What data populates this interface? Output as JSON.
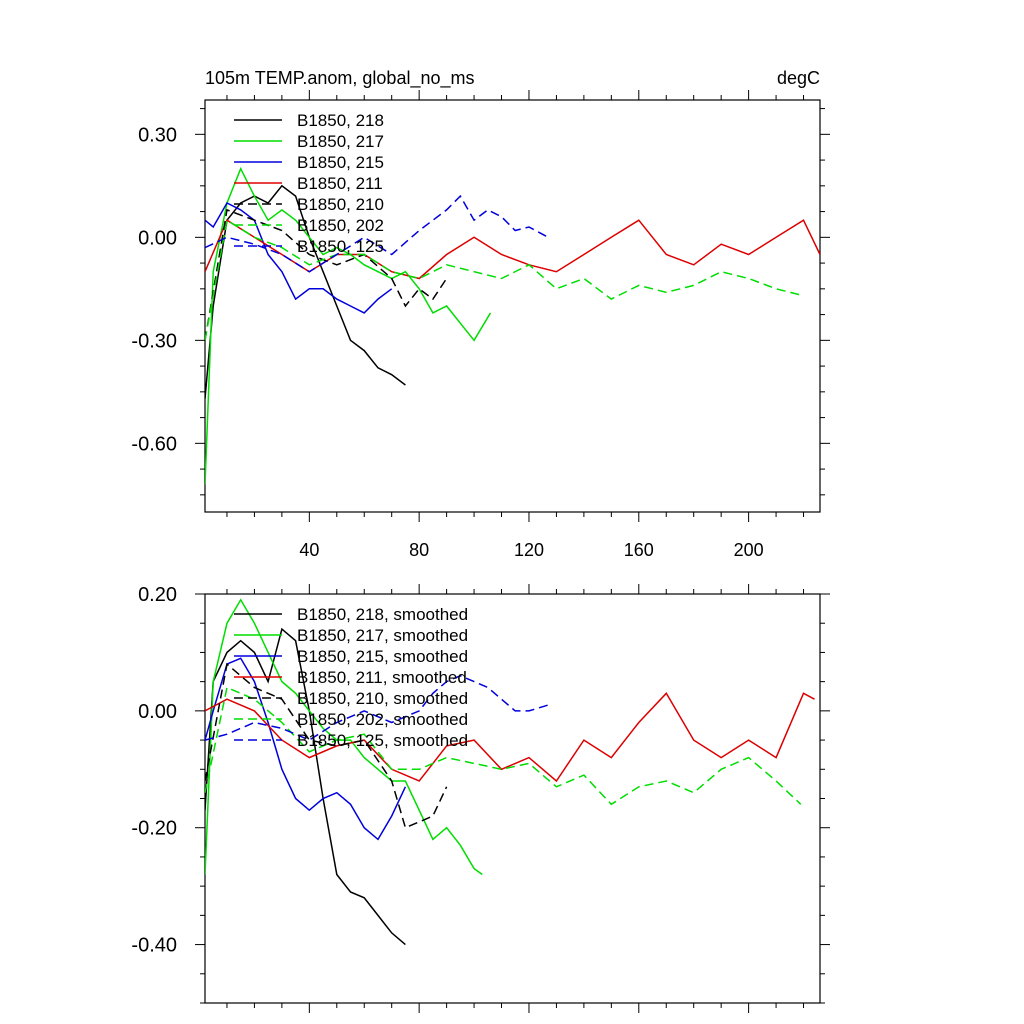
{
  "chart_data": [
    {
      "type": "line",
      "title": "105m TEMP.anom, global_no_ms",
      "units": "degC",
      "xlim": [
        2,
        226
      ],
      "ylim": [
        -0.8,
        0.4
      ],
      "xticks": [
        40,
        80,
        120,
        160,
        200
      ],
      "xtick_labels": [
        "40",
        "80",
        "120",
        "160",
        "200"
      ],
      "yticks": [
        0.3,
        0.0,
        -0.3,
        -0.6
      ],
      "ytick_labels": [
        "0.30",
        "0.00",
        "-0.30",
        "-0.60"
      ],
      "grid": false,
      "legend_position": "top-left",
      "series": [
        {
          "name": "B1850, 218",
          "color": "#000000",
          "dash": "solid",
          "x": [
            2,
            5,
            10,
            15,
            20,
            25,
            30,
            35,
            40,
            45,
            50,
            55,
            60,
            65,
            70,
            75
          ],
          "y": [
            -0.47,
            -0.2,
            0.05,
            0.1,
            0.12,
            0.1,
            0.15,
            0.12,
            0.0,
            -0.1,
            -0.2,
            -0.3,
            -0.33,
            -0.38,
            -0.4,
            -0.43
          ]
        },
        {
          "name": "B1850, 217",
          "color": "#00dd00",
          "dash": "solid",
          "x": [
            2,
            5,
            10,
            15,
            20,
            25,
            30,
            35,
            40,
            45,
            50,
            55,
            60,
            65,
            70,
            75,
            80,
            85,
            90,
            95,
            100,
            106
          ],
          "y": [
            -0.72,
            -0.1,
            0.1,
            0.2,
            0.12,
            0.05,
            0.08,
            0.05,
            0.0,
            -0.05,
            -0.03,
            -0.05,
            -0.08,
            -0.1,
            -0.12,
            -0.1,
            -0.15,
            -0.22,
            -0.2,
            -0.25,
            -0.3,
            -0.22
          ]
        },
        {
          "name": "B1850, 215",
          "color": "#0000dd",
          "dash": "solid",
          "x": [
            2,
            5,
            10,
            15,
            20,
            25,
            30,
            35,
            40,
            45,
            50,
            55,
            60,
            65,
            70
          ],
          "y": [
            0.05,
            0.03,
            0.1,
            0.08,
            0.05,
            -0.05,
            -0.1,
            -0.18,
            -0.15,
            -0.15,
            -0.18,
            -0.2,
            -0.22,
            -0.18,
            -0.15
          ]
        },
        {
          "name": "B1850, 211",
          "color": "#dd0000",
          "dash": "solid",
          "x": [
            2,
            10,
            20,
            30,
            40,
            50,
            60,
            70,
            80,
            90,
            100,
            110,
            120,
            130,
            140,
            150,
            160,
            170,
            180,
            190,
            200,
            210,
            220,
            226
          ],
          "y": [
            -0.1,
            0.05,
            0.0,
            -0.05,
            -0.1,
            -0.05,
            -0.05,
            -0.1,
            -0.12,
            -0.05,
            0.0,
            -0.05,
            -0.08,
            -0.1,
            -0.05,
            0.0,
            0.05,
            -0.05,
            -0.08,
            -0.02,
            -0.05,
            0.0,
            0.05,
            -0.05
          ]
        },
        {
          "name": "B1850, 210",
          "color": "#000000",
          "dash": "dashed",
          "x": [
            2,
            10,
            20,
            30,
            40,
            50,
            60,
            70,
            75,
            80,
            85,
            90
          ],
          "y": [
            -0.3,
            0.08,
            0.05,
            0.02,
            -0.05,
            -0.08,
            -0.05,
            -0.12,
            -0.2,
            -0.15,
            -0.18,
            -0.12
          ]
        },
        {
          "name": "B1850, 202",
          "color": "#00dd00",
          "dash": "dashed",
          "x": [
            2,
            10,
            20,
            30,
            40,
            50,
            60,
            70,
            80,
            90,
            100,
            110,
            120,
            130,
            140,
            150,
            160,
            170,
            180,
            190,
            200,
            210,
            220
          ],
          "y": [
            -0.3,
            0.05,
            0.0,
            -0.03,
            -0.08,
            -0.05,
            -0.05,
            -0.1,
            -0.12,
            -0.08,
            -0.1,
            -0.12,
            -0.08,
            -0.15,
            -0.12,
            -0.18,
            -0.14,
            -0.16,
            -0.14,
            -0.1,
            -0.12,
            -0.15,
            -0.17
          ]
        },
        {
          "name": "B1850, 125",
          "color": "#0000dd",
          "dash": "dashed",
          "x": [
            2,
            10,
            20,
            30,
            40,
            50,
            60,
            70,
            80,
            85,
            90,
            95,
            100,
            105,
            110,
            115,
            120,
            127
          ],
          "y": [
            -0.03,
            0.0,
            -0.02,
            -0.05,
            -0.1,
            -0.05,
            0.0,
            -0.05,
            0.02,
            0.05,
            0.08,
            0.12,
            0.05,
            0.08,
            0.06,
            0.02,
            0.03,
            0.0
          ]
        }
      ]
    },
    {
      "type": "line",
      "title": "",
      "units": "",
      "xlim": [
        2,
        226
      ],
      "ylim": [
        -0.5,
        0.2
      ],
      "xticks": [
        40,
        80,
        120,
        160,
        200
      ],
      "xtick_labels": [
        "",
        "",
        "",
        "",
        ""
      ],
      "yticks": [
        0.2,
        0.0,
        -0.2,
        -0.4
      ],
      "ytick_labels": [
        "0.20",
        "0.00",
        "-0.20",
        "-0.40"
      ],
      "grid": false,
      "legend_position": "top-left",
      "series": [
        {
          "name": "B1850, 218, smoothed",
          "color": "#000000",
          "dash": "solid",
          "x": [
            2,
            5,
            10,
            15,
            20,
            25,
            30,
            35,
            40,
            45,
            50,
            55,
            60,
            65,
            70,
            75
          ],
          "y": [
            -0.17,
            0.05,
            0.1,
            0.12,
            0.1,
            0.05,
            0.14,
            0.12,
            0.0,
            -0.15,
            -0.28,
            -0.31,
            -0.32,
            -0.35,
            -0.38,
            -0.4
          ]
        },
        {
          "name": "B1850, 217, smoothed",
          "color": "#00dd00",
          "dash": "solid",
          "x": [
            2,
            5,
            10,
            15,
            20,
            25,
            30,
            35,
            40,
            45,
            50,
            55,
            60,
            65,
            70,
            75,
            80,
            85,
            90,
            95,
            100,
            103
          ],
          "y": [
            -0.28,
            0.05,
            0.15,
            0.19,
            0.15,
            0.1,
            0.05,
            0.03,
            0.0,
            -0.03,
            -0.05,
            -0.05,
            -0.08,
            -0.1,
            -0.12,
            -0.12,
            -0.17,
            -0.22,
            -0.2,
            -0.23,
            -0.27,
            -0.28
          ]
        },
        {
          "name": "B1850, 215, smoothed",
          "color": "#0000dd",
          "dash": "solid",
          "x": [
            2,
            5,
            10,
            15,
            20,
            25,
            30,
            35,
            40,
            45,
            50,
            55,
            60,
            65,
            70,
            75
          ],
          "y": [
            -0.05,
            0.0,
            0.08,
            0.09,
            0.05,
            -0.02,
            -0.1,
            -0.15,
            -0.17,
            -0.15,
            -0.14,
            -0.16,
            -0.2,
            -0.22,
            -0.18,
            -0.13
          ]
        },
        {
          "name": "B1850, 211, smoothed",
          "color": "#dd0000",
          "dash": "solid",
          "x": [
            2,
            10,
            20,
            30,
            40,
            50,
            60,
            70,
            80,
            90,
            100,
            110,
            120,
            130,
            140,
            150,
            160,
            170,
            180,
            190,
            200,
            210,
            220,
            224
          ],
          "y": [
            0.0,
            0.02,
            0.0,
            -0.05,
            -0.08,
            -0.06,
            -0.05,
            -0.1,
            -0.12,
            -0.06,
            -0.05,
            -0.1,
            -0.08,
            -0.12,
            -0.05,
            -0.08,
            -0.02,
            0.03,
            -0.05,
            -0.08,
            -0.05,
            -0.08,
            0.03,
            0.02
          ]
        },
        {
          "name": "B1850, 210, smoothed",
          "color": "#000000",
          "dash": "dashed",
          "x": [
            2,
            10,
            20,
            30,
            40,
            50,
            60,
            70,
            75,
            80,
            85,
            90
          ],
          "y": [
            -0.12,
            0.08,
            0.04,
            0.02,
            -0.05,
            -0.06,
            -0.05,
            -0.12,
            -0.2,
            -0.19,
            -0.18,
            -0.13
          ]
        },
        {
          "name": "B1850, 202, smoothed",
          "color": "#00dd00",
          "dash": "dashed",
          "x": [
            2,
            10,
            20,
            30,
            40,
            50,
            60,
            70,
            80,
            90,
            100,
            110,
            120,
            130,
            140,
            150,
            160,
            170,
            180,
            190,
            200,
            210,
            219
          ],
          "y": [
            -0.14,
            0.04,
            0.02,
            -0.02,
            -0.07,
            -0.05,
            -0.04,
            -0.1,
            -0.1,
            -0.08,
            -0.09,
            -0.1,
            -0.09,
            -0.13,
            -0.11,
            -0.16,
            -0.13,
            -0.12,
            -0.14,
            -0.1,
            -0.08,
            -0.12,
            -0.16
          ]
        },
        {
          "name": "B1850, 125, smoothed",
          "color": "#0000dd",
          "dash": "dashed",
          "x": [
            2,
            10,
            20,
            30,
            40,
            50,
            60,
            70,
            80,
            85,
            90,
            95,
            100,
            105,
            110,
            115,
            120,
            127
          ],
          "y": [
            -0.05,
            -0.04,
            -0.02,
            -0.03,
            -0.05,
            -0.02,
            0.0,
            -0.02,
            0.0,
            0.03,
            0.05,
            0.06,
            0.05,
            0.04,
            0.02,
            0.0,
            0.0,
            0.01
          ]
        }
      ]
    }
  ]
}
